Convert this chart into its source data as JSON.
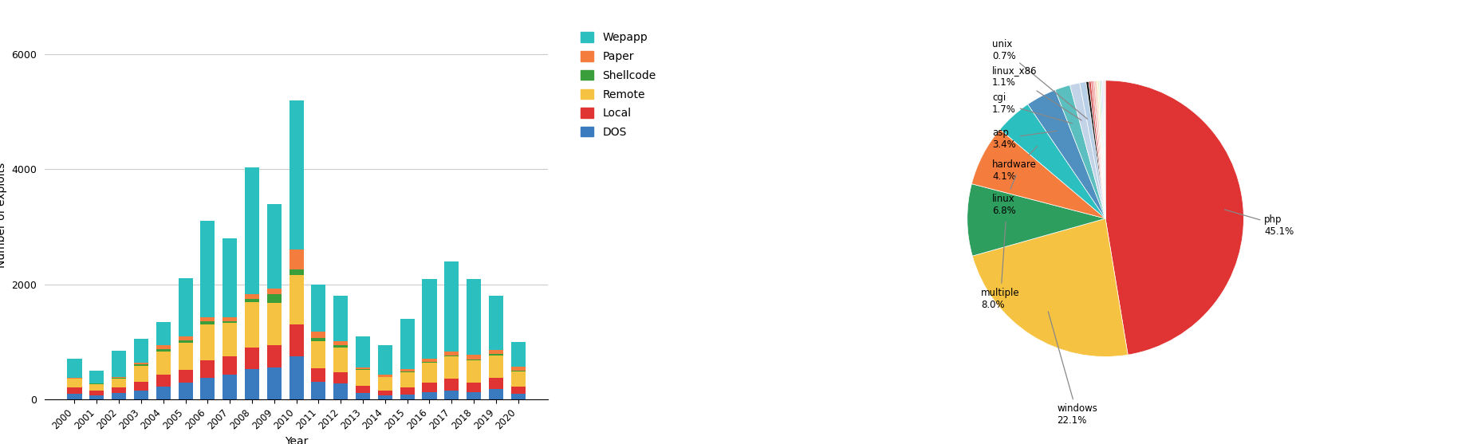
{
  "years": [
    "2000",
    "2001",
    "2002",
    "2003",
    "2004",
    "2005",
    "2006",
    "2007",
    "2008",
    "2009",
    "2010",
    "2011",
    "2012",
    "2013",
    "2014",
    "2015",
    "2016",
    "2017",
    "2018",
    "2019",
    "2020"
  ],
  "bar_colors": {
    "Wepapp": "#2bbfbf",
    "Paper": "#f47c3c",
    "Shellcode": "#3a9e3a",
    "Remote": "#f5c242",
    "Local": "#e03333",
    "DOS": "#3a7abf"
  },
  "bar_data": {
    "DOS": [
      100,
      80,
      110,
      160,
      230,
      300,
      380,
      430,
      530,
      560,
      750,
      310,
      280,
      120,
      80,
      90,
      130,
      160,
      130,
      180,
      100
    ],
    "Local": [
      110,
      80,
      100,
      150,
      200,
      220,
      300,
      320,
      380,
      380,
      560,
      240,
      200,
      120,
      80,
      120,
      160,
      200,
      160,
      200,
      120
    ],
    "Remote": [
      150,
      110,
      160,
      280,
      400,
      470,
      620,
      580,
      780,
      740,
      850,
      470,
      430,
      270,
      230,
      270,
      350,
      390,
      390,
      390,
      270
    ],
    "Shellcode": [
      5,
      5,
      10,
      20,
      50,
      45,
      60,
      35,
      60,
      150,
      100,
      55,
      35,
      15,
      8,
      8,
      12,
      15,
      15,
      22,
      15
    ],
    "Paper": [
      12,
      8,
      15,
      30,
      60,
      60,
      75,
      60,
      75,
      100,
      340,
      110,
      75,
      38,
      30,
      45,
      60,
      75,
      90,
      75,
      60
    ],
    "Wepapp": [
      340,
      215,
      455,
      410,
      410,
      1010,
      1665,
      1375,
      2205,
      1470,
      2600,
      815,
      780,
      535,
      520,
      865,
      1388,
      1560,
      1315,
      935,
      435
    ]
  },
  "bar_xlabel": "Year",
  "bar_ylabel": "Number of exploits",
  "bar_ylim": [
    0,
    6400
  ],
  "bar_yticks": [
    0,
    2000,
    4000,
    6000
  ],
  "pie_slices": [
    {
      "label": "unix",
      "pct": 0.7,
      "color": "#b8cfe8"
    },
    {
      "label": "linux_x86",
      "pct": 1.1,
      "color": "#c4d4e8"
    },
    {
      "label": "cgi",
      "pct": 1.7,
      "color": "#5bbfbf"
    },
    {
      "label": "asp",
      "pct": 3.4,
      "color": "#5090c0"
    },
    {
      "label": "hardware",
      "pct": 4.1,
      "color": "#2bbfbf"
    },
    {
      "label": "linux",
      "pct": 6.8,
      "color": "#f47c3c"
    },
    {
      "label": "multiple",
      "pct": 8.0,
      "color": "#2e9e5e"
    },
    {
      "label": "windows",
      "pct": 22.1,
      "color": "#f5c242"
    },
    {
      "label": "php",
      "pct": 45.1,
      "color": "#e03333"
    }
  ],
  "pie_extra": [
    {
      "pct": 0.3,
      "color": "#1a1a1a"
    },
    {
      "pct": 0.25,
      "color": "#cc4444"
    },
    {
      "pct": 0.2,
      "color": "#e87070"
    },
    {
      "pct": 0.2,
      "color": "#f0a0a0"
    },
    {
      "pct": 0.2,
      "color": "#f8c8b0"
    },
    {
      "pct": 0.15,
      "color": "#f8e0b0"
    },
    {
      "pct": 0.15,
      "color": "#e8f0c0"
    },
    {
      "pct": 0.15,
      "color": "#c8e8c8"
    },
    {
      "pct": 0.12,
      "color": "#a8d8e0"
    },
    {
      "pct": 0.12,
      "color": "#b8c8f0"
    },
    {
      "pct": 0.1,
      "color": "#d0b8e8"
    },
    {
      "pct": 0.1,
      "color": "#e8b8d8"
    },
    {
      "pct": 0.1,
      "color": "#f0c8c8"
    }
  ],
  "annot_left": [
    {
      "label": "unix",
      "pct_str": "0.7%"
    },
    {
      "label": "linux_x86",
      "pct_str": "1.1%"
    },
    {
      "label": "cgi",
      "pct_str": "1.7%"
    },
    {
      "label": "asp",
      "pct_str": "3.4%"
    },
    {
      "label": "hardware",
      "pct_str": "4.1%"
    },
    {
      "label": "linux",
      "pct_str": "6.8%"
    },
    {
      "label": "multiple",
      "pct_str": "8.0%"
    }
  ],
  "annot_bottom": [
    {
      "label": "windows",
      "pct_str": "22.1%"
    }
  ],
  "annot_right": [
    {
      "label": "php",
      "pct_str": "45.1%"
    }
  ]
}
